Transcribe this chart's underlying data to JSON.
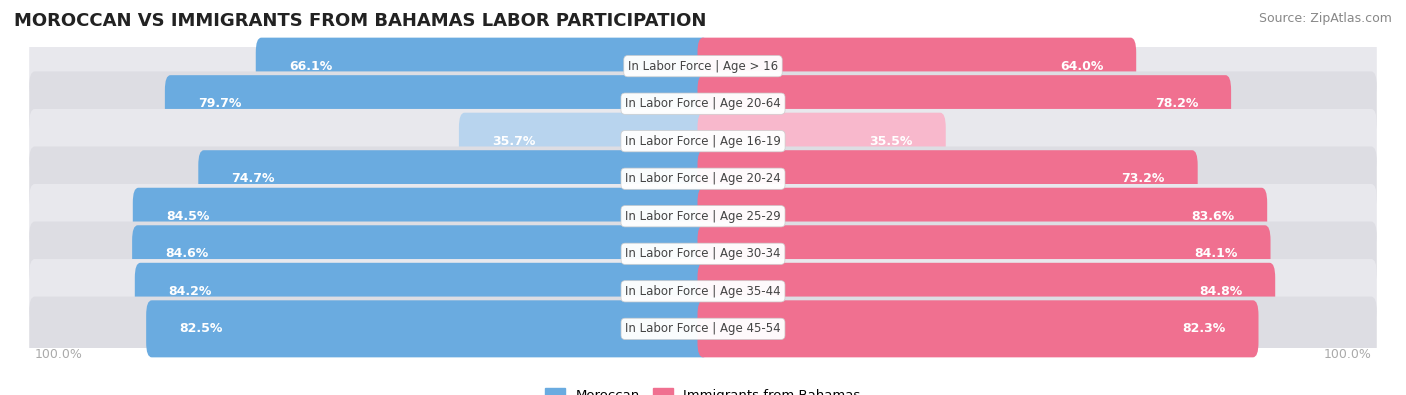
{
  "title": "MOROCCAN VS IMMIGRANTS FROM BAHAMAS LABOR PARTICIPATION",
  "source": "Source: ZipAtlas.com",
  "categories": [
    "In Labor Force | Age > 16",
    "In Labor Force | Age 20-64",
    "In Labor Force | Age 16-19",
    "In Labor Force | Age 20-24",
    "In Labor Force | Age 25-29",
    "In Labor Force | Age 30-34",
    "In Labor Force | Age 35-44",
    "In Labor Force | Age 45-54"
  ],
  "moroccan_values": [
    66.1,
    79.7,
    35.7,
    74.7,
    84.5,
    84.6,
    84.2,
    82.5
  ],
  "bahamas_values": [
    64.0,
    78.2,
    35.5,
    73.2,
    83.6,
    84.1,
    84.8,
    82.3
  ],
  "moroccan_color": "#6aabe0",
  "moroccan_color_light": "#b8d4ee",
  "bahamas_color": "#f07090",
  "bahamas_color_light": "#f8b8cc",
  "row_bg_color": "#e8e8ed",
  "row_bg_alt_color": "#dddde3",
  "label_color_white": "#ffffff",
  "label_color_dark": "#555555",
  "center_label_color": "#444444",
  "axis_label_color": "#aaaaaa",
  "title_fontsize": 13,
  "source_fontsize": 9,
  "bar_label_fontsize": 9,
  "category_label_fontsize": 8.5,
  "legend_fontsize": 9.5,
  "axis_tick_fontsize": 9,
  "legend_moroccan": "Moroccan",
  "legend_bahamas": "Immigrants from Bahamas"
}
